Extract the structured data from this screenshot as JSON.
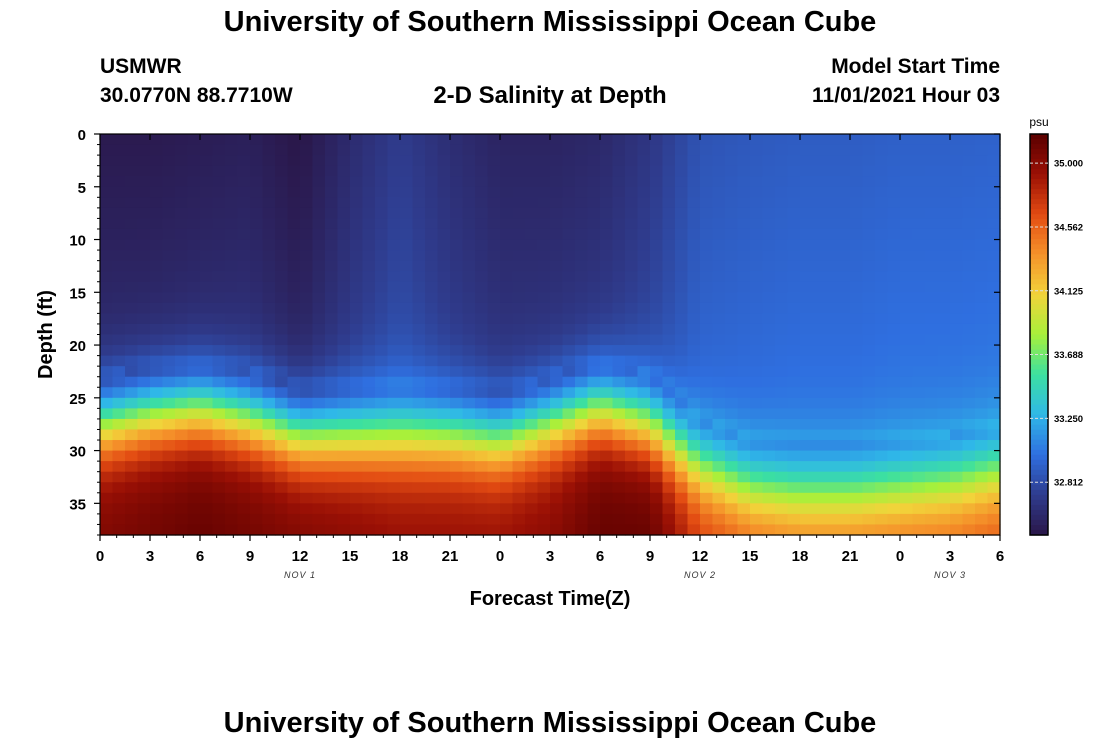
{
  "header": {
    "title": "University of Southern Mississippi Ocean Cube",
    "station": "USMWR",
    "coords": "30.0770N  88.7710W",
    "chart_title": "2-D Salinity at Depth",
    "start_label": "Model Start Time",
    "start_value": "11/01/2021 Hour 03"
  },
  "footer": {
    "title": "University of Southern Mississippi Ocean Cube"
  },
  "colors": {
    "scale": [
      "#2a1648",
      "#2f3c8e",
      "#2f6fe0",
      "#2fb8e8",
      "#3ce0a0",
      "#a8f03a",
      "#f2d33a",
      "#f5922a",
      "#e24a12",
      "#9a1005",
      "#5a0000"
    ],
    "scale_range": [
      32.45,
      35.2
    ]
  },
  "chart_data": {
    "type": "heatmap",
    "title": "2-D Salinity at Depth",
    "xlabel": "Forecast Time(Z)",
    "ylabel": "Depth (ft)",
    "xlim": [
      0,
      54
    ],
    "ylim": [
      0,
      38
    ],
    "x_ticks": [
      0,
      3,
      6,
      9,
      12,
      15,
      18,
      21,
      24,
      27,
      30,
      33,
      36,
      39,
      42,
      45,
      48,
      51,
      54
    ],
    "x_tick_labels": [
      "0",
      "3",
      "6",
      "9",
      "12",
      "15",
      "18",
      "21",
      "0",
      "3",
      "6",
      "9",
      "12",
      "15",
      "18",
      "21",
      "0",
      "3",
      "6"
    ],
    "y_ticks": [
      0,
      5,
      10,
      15,
      20,
      25,
      30,
      35
    ],
    "y_tick_labels": [
      "0",
      "5",
      "10",
      "15",
      "20",
      "25",
      "30",
      "35"
    ],
    "date_labels": [
      {
        "x": 12,
        "label": "NOV 1"
      },
      {
        "x": 36,
        "label": "NOV 2"
      },
      {
        "x": 51,
        "label": "NOV 3"
      }
    ],
    "colorbar": {
      "unit": "psu",
      "ticks": [
        35.0,
        34.562,
        34.125,
        33.688,
        33.25,
        32.812
      ],
      "tick_labels": [
        "35.000",
        "34.562",
        "34.125",
        "33.688",
        "33.250",
        "32.812"
      ]
    },
    "time_grid": [
      0,
      3,
      6,
      9,
      12,
      15,
      18,
      21,
      24,
      27,
      30,
      33,
      36,
      39,
      42,
      45,
      48,
      51,
      54
    ],
    "upper_salinity": [
      32.48,
      32.48,
      32.5,
      32.52,
      32.45,
      32.6,
      32.72,
      32.62,
      32.55,
      32.55,
      32.58,
      32.68,
      32.85,
      32.88,
      32.9,
      32.9,
      32.92,
      32.92,
      32.93
    ],
    "halocline_depth": [
      23.0,
      22.0,
      21.5,
      22.5,
      24.0,
      24.0,
      24.0,
      24.0,
      24.5,
      23.0,
      21.5,
      23.0,
      27.0,
      29.0,
      29.5,
      29.5,
      29.0,
      28.5,
      27.5
    ],
    "bottom_salinity": [
      35.05,
      35.1,
      35.15,
      35.1,
      35.05,
      35.0,
      34.95,
      34.95,
      34.95,
      35.0,
      35.15,
      35.15,
      34.75,
      34.65,
      34.6,
      34.6,
      34.6,
      34.6,
      34.65
    ]
  }
}
